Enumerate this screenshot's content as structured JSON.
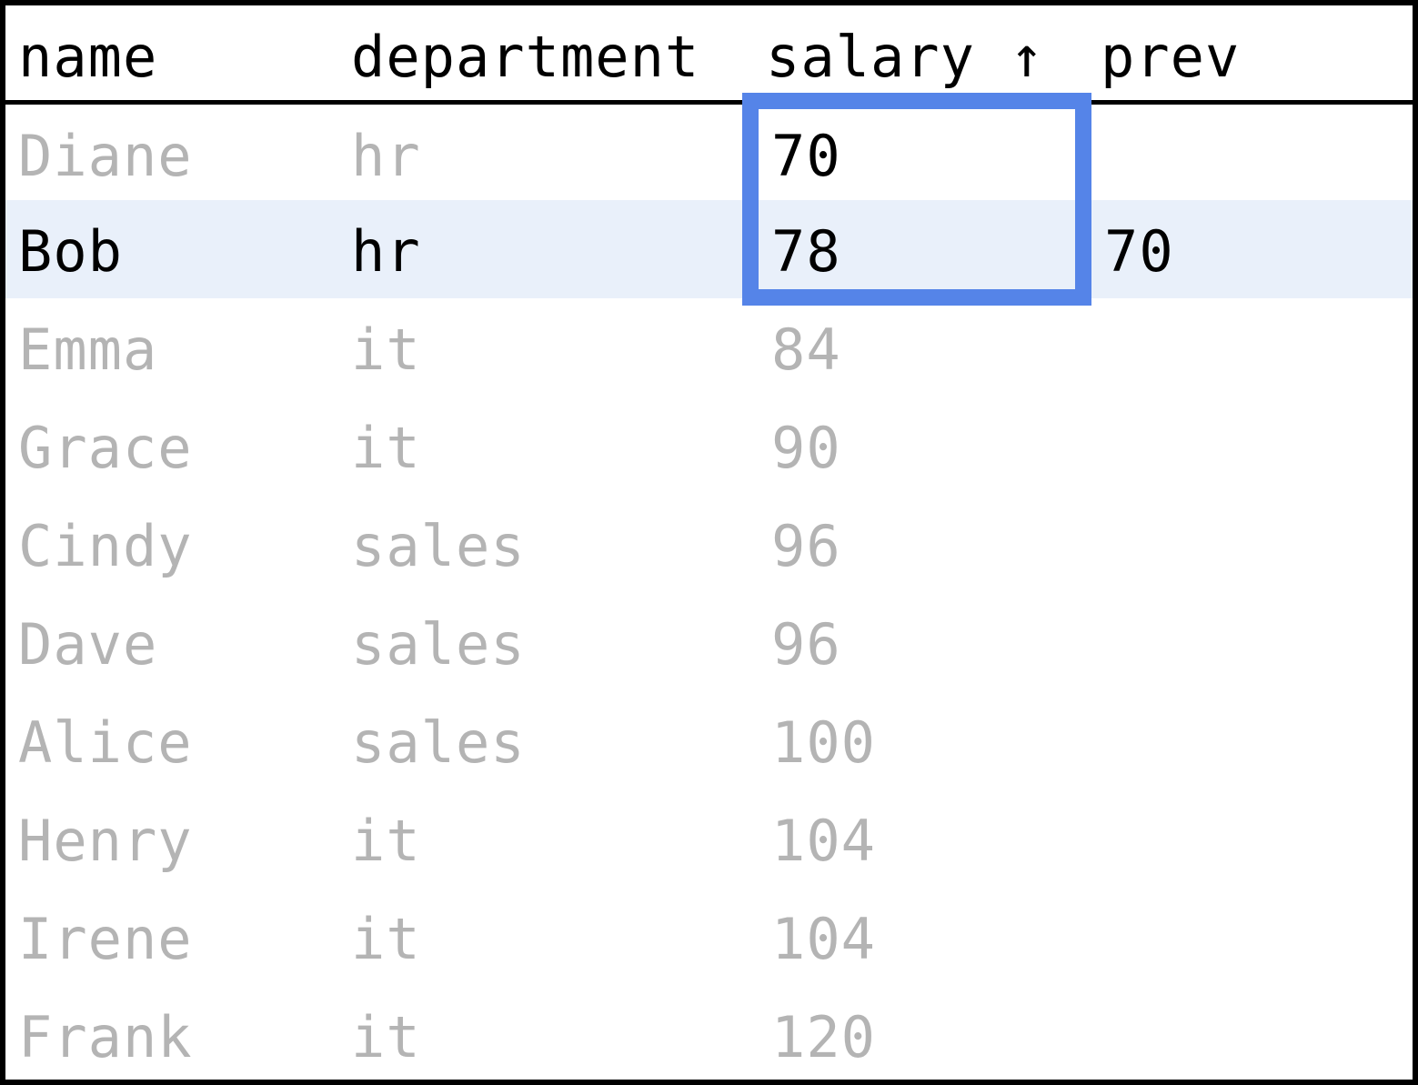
{
  "table": {
    "columns": [
      "name",
      "department",
      "salary ↑",
      "prev"
    ],
    "rows": [
      {
        "name": "Diane",
        "department": "hr",
        "salary": "70",
        "prev": ""
      },
      {
        "name": "Bob",
        "department": "hr",
        "salary": "78",
        "prev": "70"
      },
      {
        "name": "Emma",
        "department": "it",
        "salary": "84",
        "prev": ""
      },
      {
        "name": "Grace",
        "department": "it",
        "salary": "90",
        "prev": ""
      },
      {
        "name": "Cindy",
        "department": "sales",
        "salary": "96",
        "prev": ""
      },
      {
        "name": "Dave",
        "department": "sales",
        "salary": "96",
        "prev": ""
      },
      {
        "name": "Alice",
        "department": "sales",
        "salary": "100",
        "prev": ""
      },
      {
        "name": "Henry",
        "department": "it",
        "salary": "104",
        "prev": ""
      },
      {
        "name": "Irene",
        "department": "it",
        "salary": "104",
        "prev": ""
      },
      {
        "name": "Frank",
        "department": "it",
        "salary": "120",
        "prev": ""
      }
    ],
    "active_row": 1,
    "highlight": {
      "column": "salary",
      "rows": [
        0,
        1
      ]
    },
    "colors": {
      "highlight_border": "#5584e8",
      "active_row_bg": "#e9f0fa",
      "dim_text": "#b4b4b4",
      "text": "#000000"
    }
  }
}
